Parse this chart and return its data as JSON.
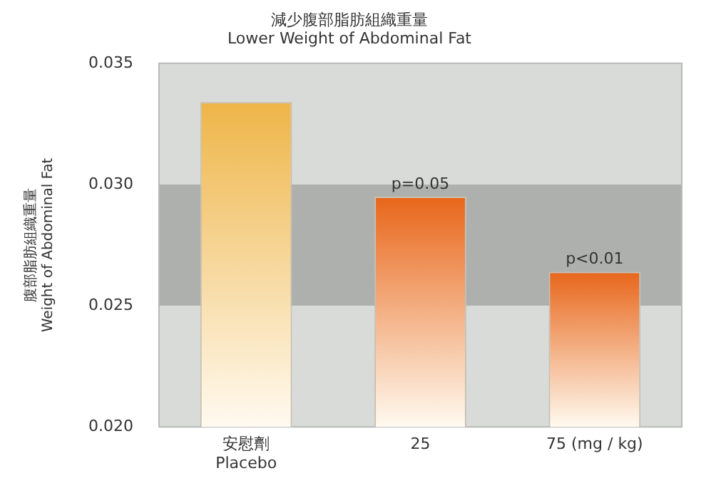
{
  "chart_data": {
    "type": "bar",
    "title": "減少腹部脂肪組織重量\nLower Weight of Abdominal Fat",
    "ylabel": "腹部脂肪組織重量\nWeight of Abdominal Fat",
    "categories": [
      "安慰劑\nPlacebo",
      "25",
      "75 (mg / kg)"
    ],
    "values": [
      0.0334,
      0.0295,
      0.0264
    ],
    "colors": [
      "#eeb548",
      "#e8661a",
      "#e8661a"
    ],
    "ylim": [
      0.02,
      0.035
    ],
    "yticks": [
      {
        "value": 0.02,
        "label": "0.020"
      },
      {
        "value": 0.025,
        "label": "0.025"
      },
      {
        "value": 0.03,
        "label": "0.030"
      },
      {
        "value": 0.035,
        "label": "0.035"
      }
    ],
    "bands": [
      {
        "axis": "y",
        "from": 0.025,
        "to": 0.03,
        "color": "#aeb0ae"
      }
    ],
    "annotations": [
      {
        "text": "p=0.05",
        "x": "25",
        "y": 0.0295
      },
      {
        "text": "p<0.01",
        "x": "75 (mg / kg)",
        "y": 0.0264
      }
    ],
    "grid": false,
    "legend": false
  }
}
